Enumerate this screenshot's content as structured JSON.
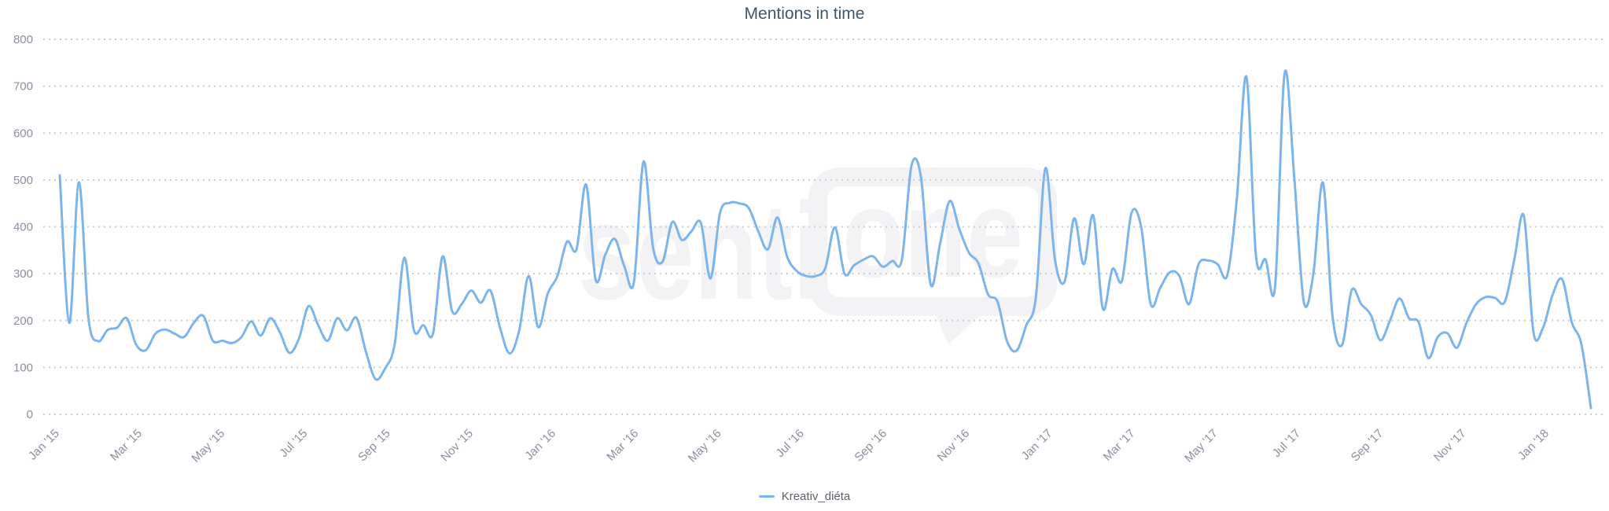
{
  "title": "Mentions in time",
  "legend": {
    "items": [
      {
        "label": "Kreativ_diéta",
        "color": "#7cb5ec"
      }
    ]
  },
  "watermark": {
    "text_left": "senti",
    "text_bubble": "one"
  },
  "colors": {
    "series": "#7cb5ec",
    "title": "#3e576f",
    "axis_label": "#8b90a1",
    "grid": "#cccccc",
    "legend_text": "#5c616d",
    "watermark": "#f3f3f5"
  },
  "chart_data": {
    "type": "line",
    "title": "Mentions in time",
    "xlabel": "",
    "ylabel": "",
    "ylim": [
      0,
      800
    ],
    "y_ticks": [
      0,
      100,
      200,
      300,
      400,
      500,
      600,
      700,
      800
    ],
    "grid": "dotted horizontal gridlines",
    "legend_position": "bottom-center",
    "x_tick_labels": [
      "Jan '15",
      "Mar '15",
      "May '15",
      "Jul '15",
      "Sep '15",
      "Nov '15",
      "Jan '16",
      "Mar '16",
      "May '16",
      "Jul '16",
      "Sep '16",
      "Nov '16",
      "Jan '17",
      "Mar '17",
      "May '17",
      "Jul '17",
      "Sep '17",
      "Nov '17",
      "Jan '18"
    ],
    "x_unit": "weekly points from Jan 2015 to early Feb 2018",
    "series": [
      {
        "name": "Kreativ_diéta",
        "color": "#7cb5ec",
        "values": [
          510,
          195,
          495,
          205,
          156,
          180,
          185,
          205,
          148,
          137,
          172,
          181,
          172,
          165,
          195,
          210,
          157,
          157,
          152,
          165,
          198,
          168,
          205,
          175,
          131,
          162,
          231,
          190,
          157,
          205,
          179,
          206,
          133,
          75,
          98,
          150,
          334,
          180,
          190,
          172,
          337,
          220,
          235,
          264,
          238,
          264,
          185,
          130,
          178,
          295,
          186,
          258,
          295,
          368,
          352,
          490,
          287,
          340,
          374,
          315,
          282,
          539,
          355,
          326,
          410,
          372,
          390,
          408,
          290,
          430,
          451,
          450,
          440,
          390,
          352,
          420,
          337,
          306,
          295,
          295,
          312,
          399,
          300,
          318,
          330,
          337,
          315,
          327,
          330,
          530,
          505,
          277,
          365,
          455,
          395,
          345,
          322,
          256,
          240,
          155,
          136,
          190,
          250,
          525,
          330,
          283,
          418,
          320,
          424,
          225,
          310,
          285,
          430,
          400,
          235,
          270,
          303,
          295,
          235,
          320,
          328,
          320,
          297,
          460,
          720,
          338,
          330,
          273,
          728,
          505,
          240,
          300,
          494,
          210,
          148,
          265,
          235,
          212,
          158,
          200,
          247,
          205,
          196,
          120,
          165,
          173,
          142,
          195,
          235,
          250,
          248,
          240,
          330,
          423,
          175,
          185,
          255,
          288,
          196,
          150,
          13
        ]
      }
    ]
  }
}
